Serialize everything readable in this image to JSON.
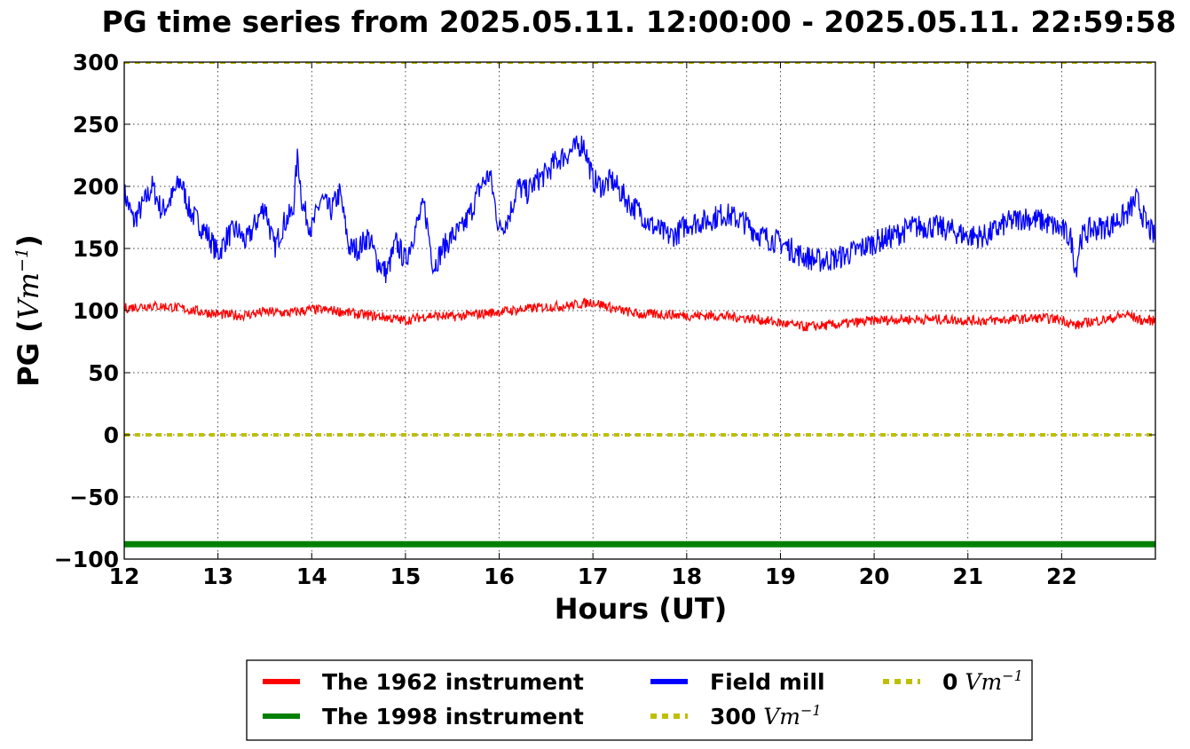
{
  "chart_data": {
    "type": "line",
    "title": "PG time series from 2025.05.11. 12:00:00 - 2025.05.11. 22:59:58",
    "xlabel": "Hours (UT)",
    "ylabel": {
      "prefix": "PG (",
      "unit": "Vm",
      "exp": "−1",
      "suffix": ")"
    },
    "xlim": [
      12,
      23
    ],
    "ylim": [
      -100,
      300
    ],
    "xticks": [
      12,
      13,
      14,
      15,
      16,
      17,
      18,
      19,
      20,
      21,
      22
    ],
    "yticks": [
      300,
      250,
      200,
      150,
      100,
      50,
      0,
      -50,
      -100
    ],
    "ytick_labels": [
      "300",
      "250",
      "200",
      "150",
      "100",
      "50",
      "0",
      "−50",
      "−100"
    ],
    "grid": true,
    "legend_position": "bottom-center",
    "series": [
      {
        "name": "The 1962 instrument",
        "color": "#ff0000",
        "x": [
          12.0,
          12.25,
          12.5,
          12.75,
          13.0,
          13.25,
          13.5,
          13.75,
          14.0,
          14.25,
          14.5,
          14.75,
          15.0,
          15.25,
          15.5,
          15.75,
          16.0,
          16.25,
          16.5,
          16.75,
          17.0,
          17.25,
          17.5,
          17.75,
          18.0,
          18.25,
          18.5,
          18.75,
          19.0,
          19.25,
          19.5,
          19.75,
          20.0,
          20.25,
          20.5,
          20.75,
          21.0,
          21.25,
          21.5,
          21.75,
          22.0,
          22.15,
          22.3,
          22.5,
          22.7,
          22.85,
          23.0
        ],
        "y": [
          102,
          104,
          103,
          100,
          97,
          96,
          99,
          98,
          101,
          100,
          97,
          95,
          92,
          96,
          95,
          97,
          99,
          101,
          103,
          104,
          107,
          101,
          97,
          97,
          96,
          96,
          95,
          93,
          90,
          87,
          88,
          90,
          92,
          93,
          93,
          93,
          92,
          92,
          93,
          94,
          93,
          88,
          91,
          93,
          97,
          92,
          92
        ],
        "noise": 4
      },
      {
        "name": "The 1998 instrument",
        "color": "#008000",
        "x": [
          12.0,
          23.0
        ],
        "y": [
          -88,
          -88
        ],
        "noise": 0
      },
      {
        "name": "Field mill",
        "color": "#0000ff",
        "x": [
          12.0,
          12.1,
          12.2,
          12.3,
          12.4,
          12.5,
          12.6,
          12.7,
          12.8,
          12.9,
          13.0,
          13.1,
          13.2,
          13.3,
          13.4,
          13.5,
          13.6,
          13.7,
          13.8,
          13.85,
          13.9,
          14.0,
          14.1,
          14.2,
          14.3,
          14.4,
          14.5,
          14.6,
          14.7,
          14.8,
          14.9,
          15.0,
          15.1,
          15.2,
          15.3,
          15.4,
          15.5,
          15.6,
          15.7,
          15.8,
          15.9,
          16.0,
          16.1,
          16.2,
          16.3,
          16.4,
          16.5,
          16.6,
          16.7,
          16.8,
          16.9,
          17.0,
          17.1,
          17.2,
          17.3,
          17.4,
          17.5,
          17.6,
          17.7,
          17.8,
          17.9,
          18.0,
          18.2,
          18.4,
          18.6,
          18.8,
          19.0,
          19.2,
          19.4,
          19.6,
          19.8,
          20.0,
          20.2,
          20.4,
          20.6,
          20.8,
          21.0,
          21.2,
          21.4,
          21.6,
          21.8,
          22.0,
          22.1,
          22.15,
          22.2,
          22.3,
          22.5,
          22.7,
          22.8,
          22.9,
          23.0
        ],
        "y": [
          195,
          172,
          185,
          200,
          180,
          190,
          205,
          180,
          170,
          160,
          145,
          160,
          165,
          155,
          170,
          185,
          150,
          170,
          180,
          225,
          185,
          165,
          190,
          180,
          195,
          150,
          150,
          160,
          140,
          130,
          155,
          140,
          165,
          185,
          135,
          150,
          160,
          165,
          180,
          200,
          210,
          165,
          175,
          200,
          195,
          205,
          210,
          220,
          225,
          230,
          235,
          205,
          200,
          205,
          195,
          185,
          180,
          170,
          165,
          160,
          162,
          170,
          172,
          178,
          172,
          160,
          155,
          145,
          140,
          142,
          148,
          155,
          160,
          167,
          168,
          165,
          160,
          160,
          170,
          175,
          172,
          165,
          158,
          132,
          158,
          165,
          168,
          178,
          190,
          170,
          158
        ],
        "noise": 10
      },
      {
        "name": "300 Vm−1",
        "color": "#bfbf00",
        "dashed": true,
        "x": [
          12.0,
          23.0
        ],
        "y": [
          300,
          300
        ],
        "noise": 0
      },
      {
        "name": "0 Vm−1",
        "color": "#bfbf00",
        "dashed": true,
        "x": [
          12.0,
          23.0
        ],
        "y": [
          0,
          0
        ],
        "noise": 0
      }
    ],
    "legend": [
      {
        "label": "The 1962 instrument",
        "color": "#ff0000",
        "style": "solid"
      },
      {
        "label": "The 1998 instrument",
        "color": "#008000",
        "style": "solid"
      },
      {
        "label": "Field mill",
        "color": "#0000ff",
        "style": "solid"
      },
      {
        "label": "300",
        "unit": "Vm",
        "exp": "−1",
        "color": "#bfbf00",
        "style": "dotted"
      },
      {
        "label": "0",
        "unit": "Vm",
        "exp": "−1",
        "color": "#bfbf00",
        "style": "dotted"
      }
    ]
  }
}
